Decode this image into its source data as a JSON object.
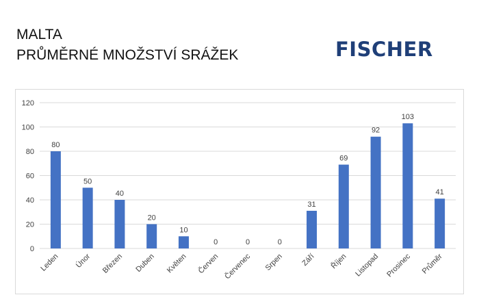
{
  "header": {
    "line1": "MALTA",
    "line2": "PRŮMĚRNÉ MNOŽSTVÍ SRÁŽEK",
    "logo_text": "FISCHER"
  },
  "colors": {
    "bar": "#4472c4",
    "grid": "#d9d9d9",
    "text": "#404040",
    "logo": "#1f3f78"
  },
  "chart_data": {
    "type": "bar",
    "categories": [
      "Leden",
      "Únor",
      "Březen",
      "Duben",
      "Květen",
      "Červen",
      "Červenec",
      "Srpen",
      "Září",
      "Říjen",
      "Listopad",
      "Prosinec",
      "Průměr"
    ],
    "values": [
      80,
      50,
      40,
      20,
      10,
      0,
      0,
      0,
      31,
      69,
      92,
      103,
      41
    ],
    "ylim": [
      0,
      120
    ],
    "yticks": [
      0,
      20,
      40,
      60,
      80,
      100,
      120
    ],
    "grid": true,
    "data_labels": true,
    "legend": "none"
  }
}
